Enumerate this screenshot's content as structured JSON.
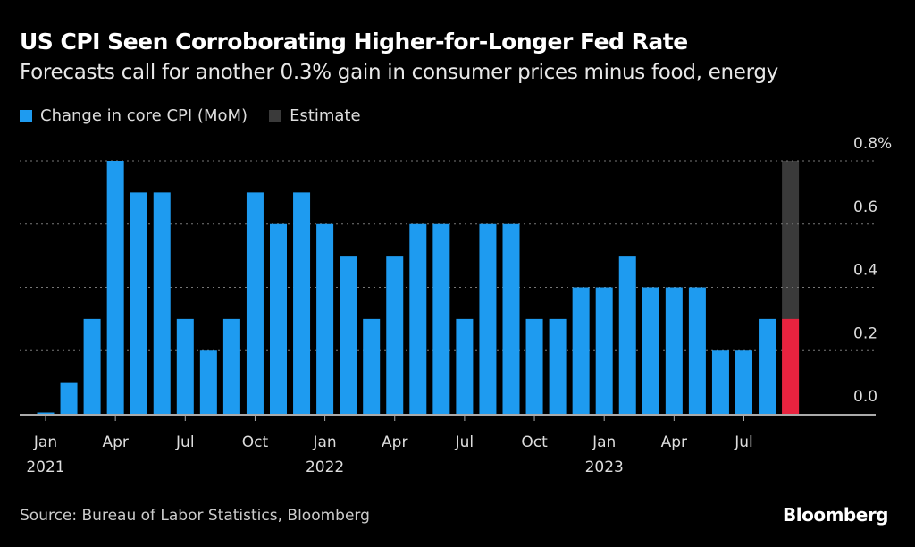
{
  "chart_data": {
    "type": "bar",
    "title": "US CPI Seen Corroborating Higher-for-Longer Fed Rate",
    "subtitle": "Forecasts call for another 0.3% gain in consumer prices minus food, energy",
    "legend": [
      {
        "name": "Change in core CPI (MoM)",
        "color": "#1e9bf0"
      },
      {
        "name": "Estimate",
        "color": "#3a3a3a"
      }
    ],
    "legend_placement": "top-left",
    "categories": [
      "Jan 2021",
      "Feb 2021",
      "Mar 2021",
      "Apr 2021",
      "May 2021",
      "Jun 2021",
      "Jul 2021",
      "Aug 2021",
      "Sep 2021",
      "Oct 2021",
      "Nov 2021",
      "Dec 2021",
      "Jan 2022",
      "Feb 2022",
      "Mar 2022",
      "Apr 2022",
      "May 2022",
      "Jun 2022",
      "Jul 2022",
      "Aug 2022",
      "Sep 2022",
      "Oct 2022",
      "Nov 2022",
      "Dec 2022",
      "Jan 2023",
      "Feb 2023",
      "Mar 2023",
      "Apr 2023",
      "May 2023",
      "Jun 2023",
      "Jul 2023",
      "Aug 2023",
      "Sep 2023"
    ],
    "series": [
      {
        "name": "Change in core CPI (MoM)",
        "values": [
          0.0,
          0.1,
          0.3,
          0.8,
          0.7,
          0.7,
          0.3,
          0.2,
          0.3,
          0.7,
          0.6,
          0.7,
          0.6,
          0.5,
          0.3,
          0.5,
          0.6,
          0.6,
          0.3,
          0.6,
          0.6,
          0.3,
          0.3,
          0.4,
          0.4,
          0.5,
          0.4,
          0.4,
          0.4,
          0.2,
          0.2,
          0.3,
          null
        ]
      }
    ],
    "estimate": {
      "category": "Sep 2023",
      "value": 0.3,
      "value_color": "#e8233f",
      "shade_to": 0.8
    },
    "x_tick_labels": [
      {
        "month": "Jan",
        "year": "2021",
        "index": 0
      },
      {
        "month": "Apr",
        "year": "",
        "index": 3
      },
      {
        "month": "Jul",
        "year": "",
        "index": 6
      },
      {
        "month": "Oct",
        "year": "",
        "index": 9
      },
      {
        "month": "Jan",
        "year": "2022",
        "index": 12
      },
      {
        "month": "Apr",
        "year": "",
        "index": 15
      },
      {
        "month": "Jul",
        "year": "",
        "index": 18
      },
      {
        "month": "Oct",
        "year": "",
        "index": 21
      },
      {
        "month": "Jan",
        "year": "2023",
        "index": 24
      },
      {
        "month": "Apr",
        "year": "",
        "index": 27
      },
      {
        "month": "Jul",
        "year": "",
        "index": 30
      }
    ],
    "y_ticks": [
      {
        "value": 0.0,
        "label": "0.0"
      },
      {
        "value": 0.2,
        "label": "0.2"
      },
      {
        "value": 0.4,
        "label": "0.4"
      },
      {
        "value": 0.6,
        "label": "0.6"
      },
      {
        "value": 0.8,
        "label": "0.8%"
      }
    ],
    "ylim": [
      0,
      0.8
    ],
    "y_axis_side": "right",
    "grid": true,
    "bar_color": "#1e9bf0"
  },
  "source": "Source: Bureau of Labor Statistics, Bloomberg",
  "brand": "Bloomberg"
}
